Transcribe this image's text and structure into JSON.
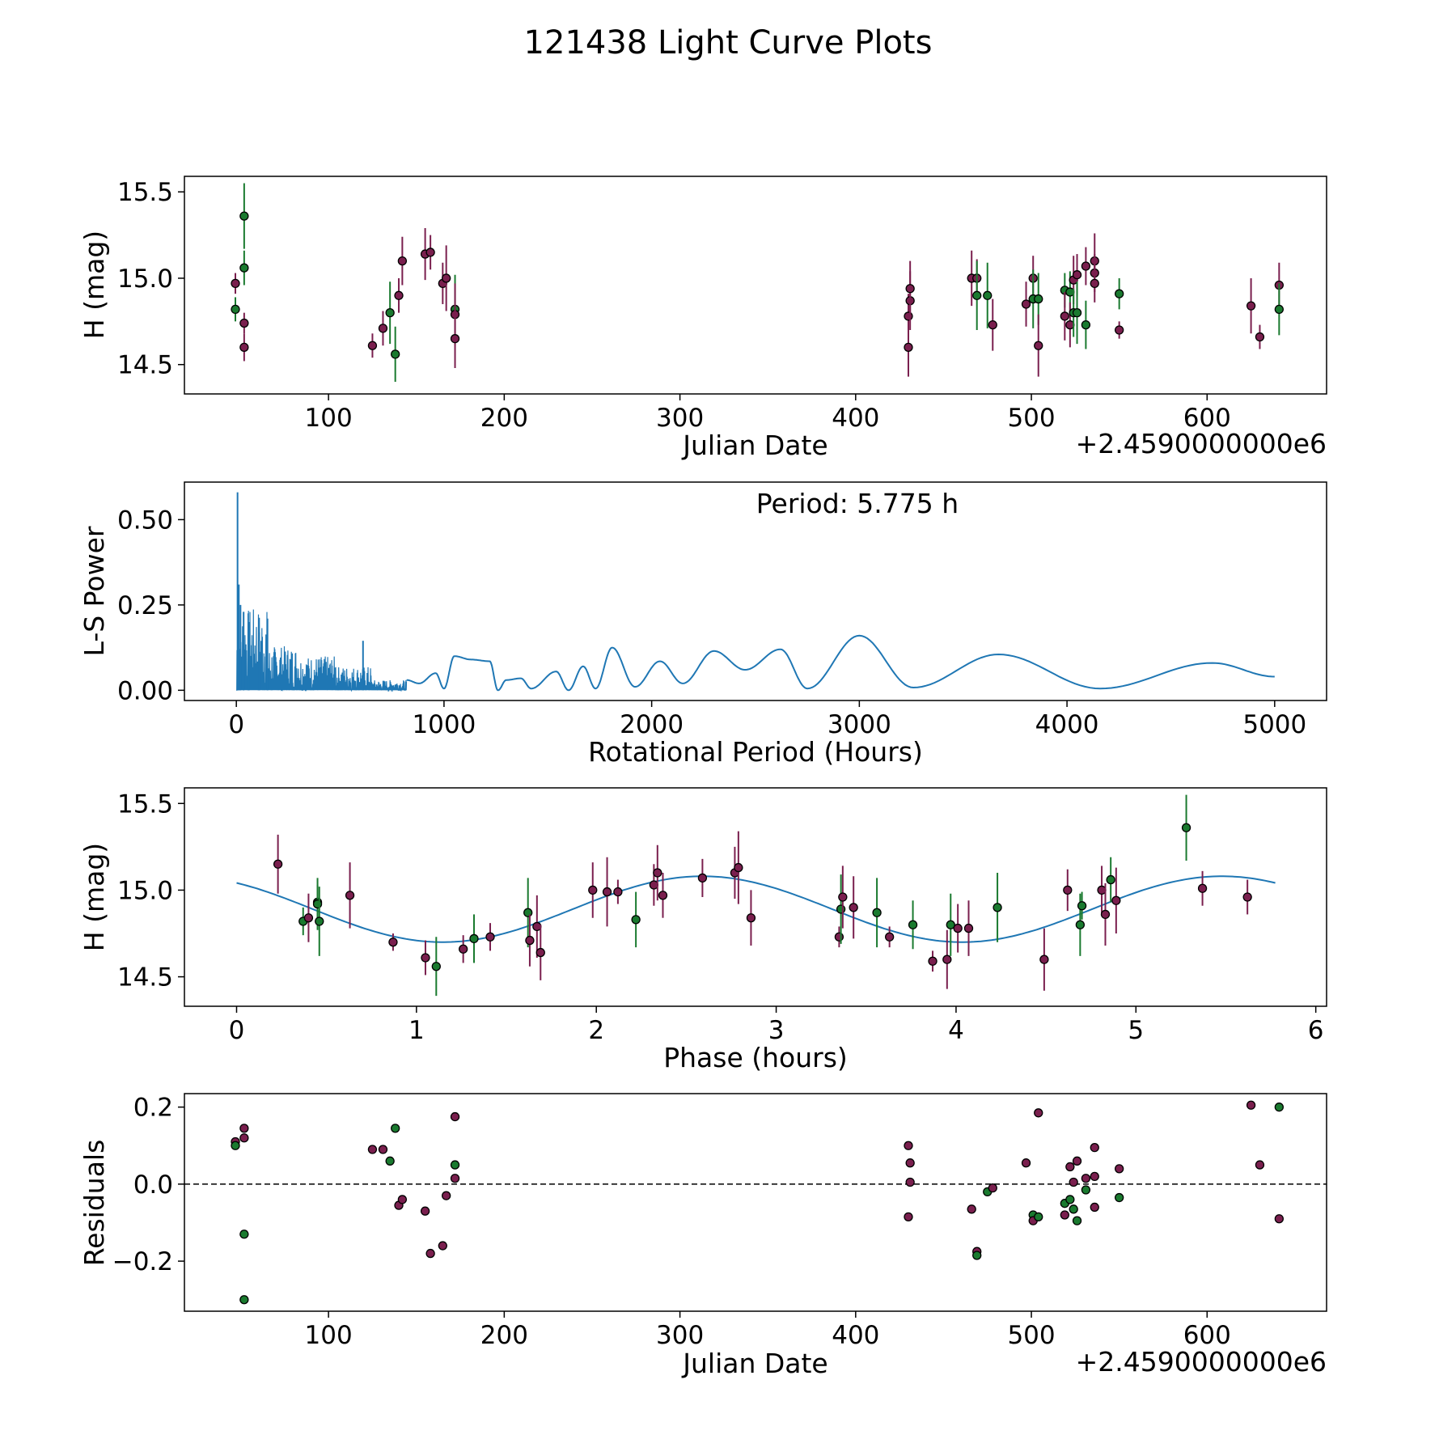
{
  "title": "121438 Light Curve Plots",
  "colors": {
    "r_band": "#7a1f4e",
    "g_band": "#1a7a2f",
    "model": "#1f77b4",
    "err_r": "#7a1f4e",
    "err_g": "#1a7a2f"
  },
  "chart_data": [
    {
      "id": "lc",
      "type": "scatter",
      "xlabel": "Julian Date",
      "ylabel": "H (mag)",
      "offset_label": "+2.4590000000e6",
      "xlim": [
        18,
        668
      ],
      "ylim": [
        14.33,
        15.59
      ],
      "xticks": [
        100,
        200,
        300,
        400,
        500,
        600
      ],
      "yticks": [
        14.5,
        15.0,
        15.5
      ],
      "xtick_labels": [
        "100",
        "200",
        "300",
        "400",
        "500",
        "600"
      ],
      "ytick_labels": [
        "14.5",
        "15.0",
        "15.5"
      ],
      "points": [
        {
          "x": 47,
          "y": 14.82,
          "e": 0.07,
          "b": "g"
        },
        {
          "x": 47,
          "y": 14.97,
          "e": 0.06,
          "b": "r"
        },
        {
          "x": 52,
          "y": 15.36,
          "e": 0.19,
          "b": "g"
        },
        {
          "x": 52,
          "y": 15.06,
          "e": 0.1,
          "b": "g"
        },
        {
          "x": 52,
          "y": 14.74,
          "e": 0.06,
          "b": "r"
        },
        {
          "x": 52,
          "y": 14.6,
          "e": 0.08,
          "b": "r"
        },
        {
          "x": 125,
          "y": 14.61,
          "e": 0.07,
          "b": "r"
        },
        {
          "x": 131,
          "y": 14.71,
          "e": 0.1,
          "b": "r"
        },
        {
          "x": 135,
          "y": 14.8,
          "e": 0.18,
          "b": "g"
        },
        {
          "x": 138,
          "y": 14.56,
          "e": 0.16,
          "b": "g"
        },
        {
          "x": 140,
          "y": 14.9,
          "e": 0.1,
          "b": "r"
        },
        {
          "x": 142,
          "y": 15.1,
          "e": 0.14,
          "b": "r"
        },
        {
          "x": 155,
          "y": 15.14,
          "e": 0.15,
          "b": "r"
        },
        {
          "x": 158,
          "y": 15.15,
          "e": 0.1,
          "b": "r"
        },
        {
          "x": 165,
          "y": 14.97,
          "e": 0.12,
          "b": "r"
        },
        {
          "x": 167,
          "y": 15.0,
          "e": 0.19,
          "b": "r"
        },
        {
          "x": 172,
          "y": 14.82,
          "e": 0.2,
          "b": "g"
        },
        {
          "x": 172,
          "y": 14.79,
          "e": 0.18,
          "b": "r"
        },
        {
          "x": 172,
          "y": 14.65,
          "e": 0.17,
          "b": "r"
        },
        {
          "x": 430,
          "y": 14.6,
          "e": 0.17,
          "b": "r"
        },
        {
          "x": 430,
          "y": 14.78,
          "e": 0.13,
          "b": "r"
        },
        {
          "x": 431,
          "y": 14.87,
          "e": 0.17,
          "b": "r"
        },
        {
          "x": 431,
          "y": 14.94,
          "e": 0.16,
          "b": "r"
        },
        {
          "x": 466,
          "y": 15.0,
          "e": 0.16,
          "b": "r"
        },
        {
          "x": 469,
          "y": 15.0,
          "e": 0.11,
          "b": "r"
        },
        {
          "x": 469,
          "y": 14.9,
          "e": 0.2,
          "b": "g"
        },
        {
          "x": 475,
          "y": 14.9,
          "e": 0.19,
          "b": "g"
        },
        {
          "x": 478,
          "y": 14.73,
          "e": 0.15,
          "b": "r"
        },
        {
          "x": 497,
          "y": 14.85,
          "e": 0.13,
          "b": "r"
        },
        {
          "x": 501,
          "y": 15.0,
          "e": 0.13,
          "b": "r"
        },
        {
          "x": 501,
          "y": 14.88,
          "e": 0.17,
          "b": "g"
        },
        {
          "x": 504,
          "y": 14.88,
          "e": 0.15,
          "b": "g"
        },
        {
          "x": 504,
          "y": 14.61,
          "e": 0.18,
          "b": "r"
        },
        {
          "x": 519,
          "y": 14.93,
          "e": 0.1,
          "b": "g"
        },
        {
          "x": 519,
          "y": 14.78,
          "e": 0.14,
          "b": "r"
        },
        {
          "x": 522,
          "y": 14.92,
          "e": 0.12,
          "b": "g"
        },
        {
          "x": 522,
          "y": 14.73,
          "e": 0.13,
          "b": "r"
        },
        {
          "x": 524,
          "y": 14.99,
          "e": 0.14,
          "b": "r"
        },
        {
          "x": 524,
          "y": 14.8,
          "e": 0.14,
          "b": "g"
        },
        {
          "x": 526,
          "y": 15.02,
          "e": 0.12,
          "b": "r"
        },
        {
          "x": 526,
          "y": 14.8,
          "e": 0.18,
          "b": "g"
        },
        {
          "x": 531,
          "y": 15.07,
          "e": 0.11,
          "b": "r"
        },
        {
          "x": 531,
          "y": 14.73,
          "e": 0.14,
          "b": "g"
        },
        {
          "x": 536,
          "y": 15.1,
          "e": 0.16,
          "b": "r"
        },
        {
          "x": 536,
          "y": 15.03,
          "e": 0.11,
          "b": "r"
        },
        {
          "x": 536,
          "y": 14.97,
          "e": 0.11,
          "b": "r"
        },
        {
          "x": 550,
          "y": 14.91,
          "e": 0.09,
          "b": "g"
        },
        {
          "x": 550,
          "y": 14.7,
          "e": 0.05,
          "b": "r"
        },
        {
          "x": 625,
          "y": 14.84,
          "e": 0.16,
          "b": "r"
        },
        {
          "x": 630,
          "y": 14.66,
          "e": 0.07,
          "b": "r"
        },
        {
          "x": 641,
          "y": 14.96,
          "e": 0.13,
          "b": "r"
        },
        {
          "x": 641,
          "y": 14.82,
          "e": 0.15,
          "b": "g"
        }
      ]
    },
    {
      "id": "ls",
      "type": "line",
      "xlabel": "Rotational Period (Hours)",
      "ylabel": "L-S Power",
      "annotation": "Period: 5.775 h",
      "xlim": [
        -250,
        5250
      ],
      "ylim": [
        -0.03,
        0.61
      ],
      "xticks": [
        0,
        1000,
        2000,
        3000,
        4000,
        5000
      ],
      "yticks": [
        0.0,
        0.25,
        0.5
      ],
      "xtick_labels": [
        "0",
        "1000",
        "2000",
        "3000",
        "4000",
        "5000"
      ],
      "ytick_labels": [
        "0.00",
        "0.25",
        "0.50"
      ],
      "peak_period": 5.775,
      "peak_power": 0.58,
      "smooth_peaks": [
        [
          820,
          0.03
        ],
        [
          880,
          0.02
        ],
        [
          960,
          0.05
        ],
        [
          1050,
          0.1
        ],
        [
          1130,
          0.09
        ],
        [
          1220,
          0.085
        ],
        [
          1300,
          0.03
        ],
        [
          1370,
          0.035
        ],
        [
          1540,
          0.055
        ],
        [
          1670,
          0.07
        ],
        [
          1810,
          0.125
        ],
        [
          2040,
          0.085
        ],
        [
          2300,
          0.115
        ],
        [
          2620,
          0.12
        ],
        [
          3000,
          0.16
        ],
        [
          3670,
          0.105
        ],
        [
          4700,
          0.08
        ]
      ],
      "smooth_troughs": [
        [
          1000,
          0.005
        ],
        [
          1260,
          0.0
        ],
        [
          1420,
          0.005
        ],
        [
          1600,
          0.0
        ],
        [
          1730,
          0.005
        ],
        [
          1920,
          0.01
        ],
        [
          2150,
          0.02
        ],
        [
          2450,
          0.06
        ],
        [
          2750,
          0.005
        ],
        [
          3260,
          0.008
        ],
        [
          4160,
          0.005
        ],
        [
          5000,
          0.04
        ]
      ]
    },
    {
      "id": "phase",
      "type": "scatter",
      "xlabel": "Phase (hours)",
      "ylabel": "H (mag)",
      "xlim": [
        -0.29,
        6.06
      ],
      "ylim": [
        14.33,
        15.59
      ],
      "xticks": [
        0,
        1,
        2,
        3,
        4,
        5,
        6
      ],
      "yticks": [
        14.5,
        15.0,
        15.5
      ],
      "xtick_labels": [
        "0",
        "1",
        "2",
        "3",
        "4",
        "5",
        "6"
      ],
      "ytick_labels": [
        "14.5",
        "15.0",
        "15.5"
      ],
      "model": {
        "mean": 14.89,
        "amp": 0.19,
        "period": 2.8875,
        "phase_peak": 2.59
      },
      "points": [
        {
          "x": 0.23,
          "y": 15.15,
          "e": 0.17,
          "b": "r"
        },
        {
          "x": 0.37,
          "y": 14.82,
          "e": 0.08,
          "b": "g"
        },
        {
          "x": 0.4,
          "y": 14.84,
          "e": 0.14,
          "b": "r"
        },
        {
          "x": 0.45,
          "y": 14.93,
          "e": 0.1,
          "b": "g"
        },
        {
          "x": 0.45,
          "y": 14.92,
          "e": 0.15,
          "b": "g"
        },
        {
          "x": 0.46,
          "y": 14.82,
          "e": 0.2,
          "b": "g"
        },
        {
          "x": 0.63,
          "y": 14.97,
          "e": 0.19,
          "b": "r"
        },
        {
          "x": 0.87,
          "y": 14.7,
          "e": 0.05,
          "b": "r"
        },
        {
          "x": 1.05,
          "y": 14.61,
          "e": 0.1,
          "b": "r"
        },
        {
          "x": 1.11,
          "y": 14.56,
          "e": 0.17,
          "b": "g"
        },
        {
          "x": 1.26,
          "y": 14.66,
          "e": 0.08,
          "b": "r"
        },
        {
          "x": 1.32,
          "y": 14.72,
          "e": 0.14,
          "b": "g"
        },
        {
          "x": 1.41,
          "y": 14.73,
          "e": 0.08,
          "b": "r"
        },
        {
          "x": 1.62,
          "y": 14.87,
          "e": 0.2,
          "b": "g"
        },
        {
          "x": 1.63,
          "y": 14.71,
          "e": 0.15,
          "b": "r"
        },
        {
          "x": 1.67,
          "y": 14.79,
          "e": 0.18,
          "b": "r"
        },
        {
          "x": 1.69,
          "y": 14.64,
          "e": 0.16,
          "b": "r"
        },
        {
          "x": 1.98,
          "y": 15.0,
          "e": 0.16,
          "b": "r"
        },
        {
          "x": 2.06,
          "y": 14.99,
          "e": 0.2,
          "b": "r"
        },
        {
          "x": 2.12,
          "y": 14.99,
          "e": 0.07,
          "b": "r"
        },
        {
          "x": 2.22,
          "y": 14.83,
          "e": 0.16,
          "b": "g"
        },
        {
          "x": 2.32,
          "y": 15.03,
          "e": 0.12,
          "b": "r"
        },
        {
          "x": 2.34,
          "y": 15.1,
          "e": 0.16,
          "b": "r"
        },
        {
          "x": 2.37,
          "y": 14.97,
          "e": 0.13,
          "b": "r"
        },
        {
          "x": 2.59,
          "y": 15.07,
          "e": 0.11,
          "b": "r"
        },
        {
          "x": 2.77,
          "y": 15.1,
          "e": 0.15,
          "b": "r"
        },
        {
          "x": 2.79,
          "y": 15.13,
          "e": 0.21,
          "b": "r"
        },
        {
          "x": 2.86,
          "y": 14.84,
          "e": 0.16,
          "b": "r"
        },
        {
          "x": 3.35,
          "y": 14.73,
          "e": 0.06,
          "b": "r"
        },
        {
          "x": 3.36,
          "y": 14.89,
          "e": 0.2,
          "b": "g"
        },
        {
          "x": 3.37,
          "y": 14.96,
          "e": 0.18,
          "b": "r"
        },
        {
          "x": 3.43,
          "y": 14.9,
          "e": 0.18,
          "b": "r"
        },
        {
          "x": 3.56,
          "y": 14.87,
          "e": 0.2,
          "b": "g"
        },
        {
          "x": 3.63,
          "y": 14.73,
          "e": 0.06,
          "b": "r"
        },
        {
          "x": 3.76,
          "y": 14.8,
          "e": 0.14,
          "b": "g"
        },
        {
          "x": 3.87,
          "y": 14.59,
          "e": 0.06,
          "b": "r"
        },
        {
          "x": 3.95,
          "y": 14.6,
          "e": 0.17,
          "b": "r"
        },
        {
          "x": 3.97,
          "y": 14.8,
          "e": 0.18,
          "b": "g"
        },
        {
          "x": 4.01,
          "y": 14.78,
          "e": 0.14,
          "b": "r"
        },
        {
          "x": 4.07,
          "y": 14.78,
          "e": 0.16,
          "b": "r"
        },
        {
          "x": 4.23,
          "y": 14.9,
          "e": 0.2,
          "b": "g"
        },
        {
          "x": 4.49,
          "y": 14.6,
          "e": 0.18,
          "b": "r"
        },
        {
          "x": 4.62,
          "y": 15.0,
          "e": 0.12,
          "b": "r"
        },
        {
          "x": 4.69,
          "y": 14.8,
          "e": 0.18,
          "b": "g"
        },
        {
          "x": 4.7,
          "y": 14.91,
          "e": 0.08,
          "b": "g"
        },
        {
          "x": 4.81,
          "y": 15.0,
          "e": 0.14,
          "b": "r"
        },
        {
          "x": 4.83,
          "y": 14.86,
          "e": 0.18,
          "b": "r"
        },
        {
          "x": 4.86,
          "y": 15.06,
          "e": 0.13,
          "b": "g"
        },
        {
          "x": 4.89,
          "y": 14.94,
          "e": 0.19,
          "b": "r"
        },
        {
          "x": 5.28,
          "y": 15.36,
          "e": 0.19,
          "b": "g"
        },
        {
          "x": 5.37,
          "y": 15.01,
          "e": 0.1,
          "b": "r"
        },
        {
          "x": 5.62,
          "y": 14.96,
          "e": 0.1,
          "b": "r"
        }
      ]
    },
    {
      "id": "res",
      "type": "scatter",
      "xlabel": "Julian Date",
      "ylabel": "Residuals",
      "offset_label": "+2.4590000000e6",
      "xlim": [
        18,
        668
      ],
      "ylim": [
        -0.33,
        0.235
      ],
      "xticks": [
        100,
        200,
        300,
        400,
        500,
        600
      ],
      "yticks": [
        -0.2,
        0.0,
        0.2
      ],
      "xtick_labels": [
        "100",
        "200",
        "300",
        "400",
        "500",
        "600"
      ],
      "ytick_labels": [
        "−0.2",
        "0.0",
        "0.2"
      ],
      "zero_line": 0.0,
      "points": [
        {
          "x": 47,
          "y": 0.11,
          "b": "r"
        },
        {
          "x": 47,
          "y": 0.1,
          "b": "g"
        },
        {
          "x": 52,
          "y": 0.145,
          "b": "r"
        },
        {
          "x": 52,
          "y": 0.12,
          "b": "r"
        },
        {
          "x": 52,
          "y": -0.13,
          "b": "g"
        },
        {
          "x": 52,
          "y": -0.3,
          "b": "g"
        },
        {
          "x": 125,
          "y": 0.09,
          "b": "r"
        },
        {
          "x": 131,
          "y": 0.09,
          "b": "r"
        },
        {
          "x": 135,
          "y": 0.06,
          "b": "g"
        },
        {
          "x": 138,
          "y": 0.145,
          "b": "g"
        },
        {
          "x": 140,
          "y": -0.055,
          "b": "r"
        },
        {
          "x": 142,
          "y": -0.04,
          "b": "r"
        },
        {
          "x": 155,
          "y": -0.07,
          "b": "r"
        },
        {
          "x": 158,
          "y": -0.18,
          "b": "r"
        },
        {
          "x": 165,
          "y": -0.16,
          "b": "r"
        },
        {
          "x": 167,
          "y": -0.03,
          "b": "r"
        },
        {
          "x": 172,
          "y": 0.175,
          "b": "r"
        },
        {
          "x": 172,
          "y": 0.05,
          "b": "g"
        },
        {
          "x": 172,
          "y": 0.015,
          "b": "r"
        },
        {
          "x": 430,
          "y": 0.1,
          "b": "r"
        },
        {
          "x": 431,
          "y": 0.055,
          "b": "r"
        },
        {
          "x": 431,
          "y": 0.005,
          "b": "r"
        },
        {
          "x": 430,
          "y": -0.085,
          "b": "r"
        },
        {
          "x": 466,
          "y": -0.065,
          "b": "r"
        },
        {
          "x": 469,
          "y": -0.175,
          "b": "r"
        },
        {
          "x": 469,
          "y": -0.185,
          "b": "g"
        },
        {
          "x": 475,
          "y": -0.02,
          "b": "g"
        },
        {
          "x": 478,
          "y": -0.01,
          "b": "r"
        },
        {
          "x": 497,
          "y": 0.055,
          "b": "r"
        },
        {
          "x": 501,
          "y": -0.08,
          "b": "g"
        },
        {
          "x": 501,
          "y": -0.095,
          "b": "r"
        },
        {
          "x": 504,
          "y": 0.185,
          "b": "r"
        },
        {
          "x": 504,
          "y": -0.085,
          "b": "g"
        },
        {
          "x": 519,
          "y": -0.05,
          "b": "g"
        },
        {
          "x": 519,
          "y": -0.08,
          "b": "r"
        },
        {
          "x": 522,
          "y": 0.045,
          "b": "r"
        },
        {
          "x": 522,
          "y": -0.04,
          "b": "g"
        },
        {
          "x": 524,
          "y": 0.005,
          "b": "r"
        },
        {
          "x": 524,
          "y": -0.065,
          "b": "g"
        },
        {
          "x": 526,
          "y": 0.06,
          "b": "r"
        },
        {
          "x": 526,
          "y": -0.095,
          "b": "g"
        },
        {
          "x": 531,
          "y": 0.015,
          "b": "r"
        },
        {
          "x": 531,
          "y": -0.015,
          "b": "g"
        },
        {
          "x": 536,
          "y": 0.095,
          "b": "r"
        },
        {
          "x": 536,
          "y": 0.02,
          "b": "r"
        },
        {
          "x": 536,
          "y": -0.06,
          "b": "r"
        },
        {
          "x": 550,
          "y": 0.04,
          "b": "r"
        },
        {
          "x": 550,
          "y": -0.035,
          "b": "g"
        },
        {
          "x": 625,
          "y": 0.205,
          "b": "r"
        },
        {
          "x": 630,
          "y": 0.05,
          "b": "r"
        },
        {
          "x": 641,
          "y": 0.2,
          "b": "g"
        },
        {
          "x": 641,
          "y": -0.09,
          "b": "r"
        }
      ]
    }
  ]
}
